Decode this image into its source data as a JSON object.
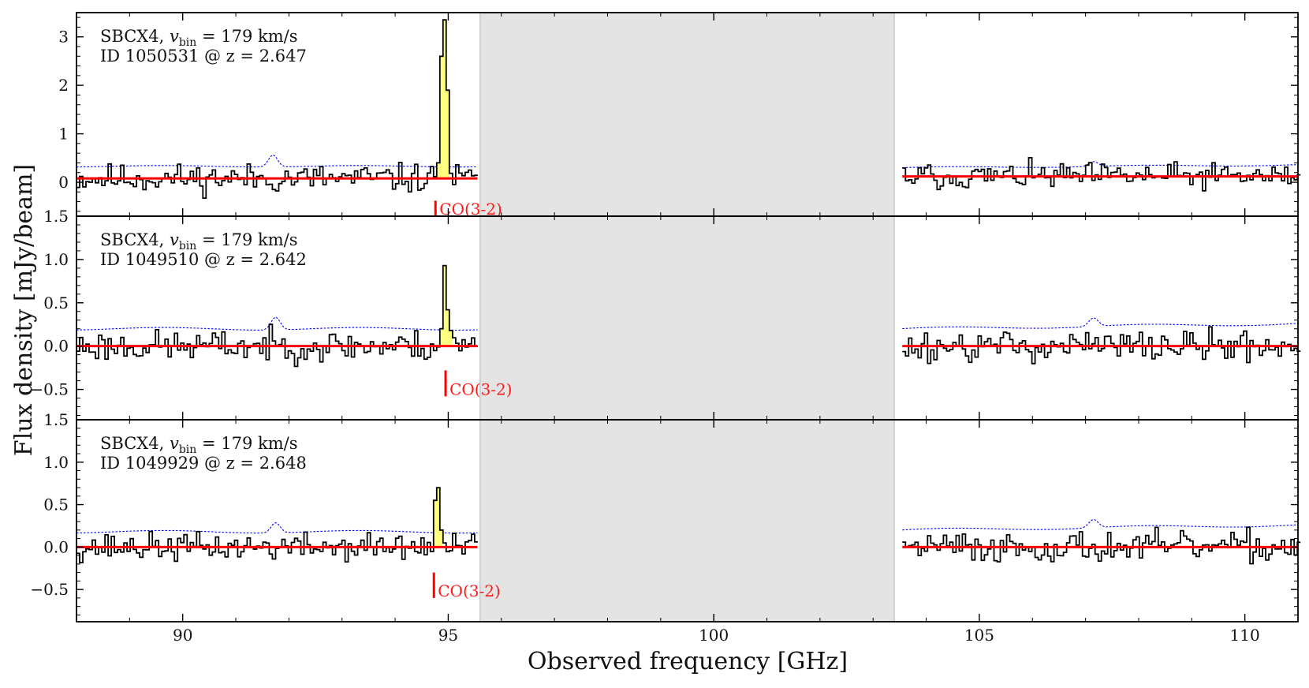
{
  "chart_data": {
    "type": "step-spectrum",
    "xlabel": "Observed frequency [GHz]",
    "ylabel": "Flux density [mJy/beam]",
    "xlim": [
      88,
      111
    ],
    "xticks": [
      90,
      95,
      100,
      105,
      110
    ],
    "gap_band": [
      95.6,
      103.4
    ],
    "colors": {
      "spectrum": "#000000",
      "line_fill": "#ffff80",
      "baseline": "#ff0000",
      "noise": "#0000ff",
      "gap": "#e4e4e4",
      "line_label": "#ff1a1a"
    },
    "panels": [
      {
        "label_prefix": "SBCX4,",
        "vbin_symbol": "v",
        "vbin_subscript": "bin",
        "vbin_value": "= 179 km/s",
        "id_line": "ID 1050531 @ z = 2.647",
        "ylim": [
          -0.7,
          3.5
        ],
        "yticks": [
          0,
          1,
          2,
          3
        ],
        "ytick_labels": [
          "0",
          "1",
          "2",
          "3"
        ],
        "line_name": "CO(3-2)",
        "line_freq": 94.76,
        "line_marker": [
          -0.38,
          -0.7
        ],
        "baseline_left": 0.08,
        "baseline_right": 0.12,
        "noise_left": 0.33,
        "noise_right": 0.3,
        "noise_bump": 91.7,
        "noise_bump_height": 0.25,
        "line_peak": 3.35,
        "line_profile": [
          0.4,
          2.6,
          3.35,
          1.9,
          0.35
        ],
        "line_range": [
          94.73,
          94.97
        ],
        "seed": 11
      },
      {
        "label_prefix": "SBCX4,",
        "vbin_symbol": "v",
        "vbin_subscript": "bin",
        "vbin_value": "= 179 km/s",
        "id_line": "ID 1049510 @ z = 2.642",
        "ylim": [
          -0.85,
          1.5
        ],
        "yticks": [
          -0.5,
          0.0,
          0.5,
          1.0,
          1.5
        ],
        "ytick_labels": [
          "−0.5",
          "0.0",
          "0.5",
          "1.0",
          "1.5"
        ],
        "line_name": "CO(3-2)",
        "line_freq": 94.95,
        "line_marker": [
          -0.28,
          -0.58
        ],
        "baseline_left": 0.0,
        "baseline_right": 0.0,
        "noise_left": 0.2,
        "noise_right": 0.2,
        "noise_bump": 91.75,
        "noise_bump_height": 0.15,
        "line_peak": 0.93,
        "line_profile": [
          0.2,
          0.93,
          0.42,
          0.18
        ],
        "line_range": [
          94.83,
          95.07
        ],
        "seed": 23
      },
      {
        "label_prefix": "SBCX4,",
        "vbin_symbol": "v",
        "vbin_subscript": "bin",
        "vbin_value": "= 179 km/s",
        "id_line": "ID 1049929 @ z = 2.648",
        "ylim": [
          -0.88,
          1.5
        ],
        "yticks": [
          -0.5,
          0.0,
          0.5,
          1.0,
          1.5
        ],
        "ytick_labels": [
          "−0.5",
          "0.0",
          "0.5",
          "1.0",
          "1.5"
        ],
        "line_name": "CO(3-2)",
        "line_freq": 94.73,
        "line_marker": [
          -0.3,
          -0.6
        ],
        "baseline_left": 0.0,
        "baseline_right": 0.0,
        "noise_left": 0.18,
        "noise_right": 0.2,
        "noise_bump": 91.75,
        "noise_bump_height": 0.12,
        "line_peak": 0.7,
        "line_profile": [
          0.55,
          0.7,
          0.2
        ],
        "line_range": [
          94.67,
          94.85
        ],
        "seed": 37
      }
    ]
  }
}
